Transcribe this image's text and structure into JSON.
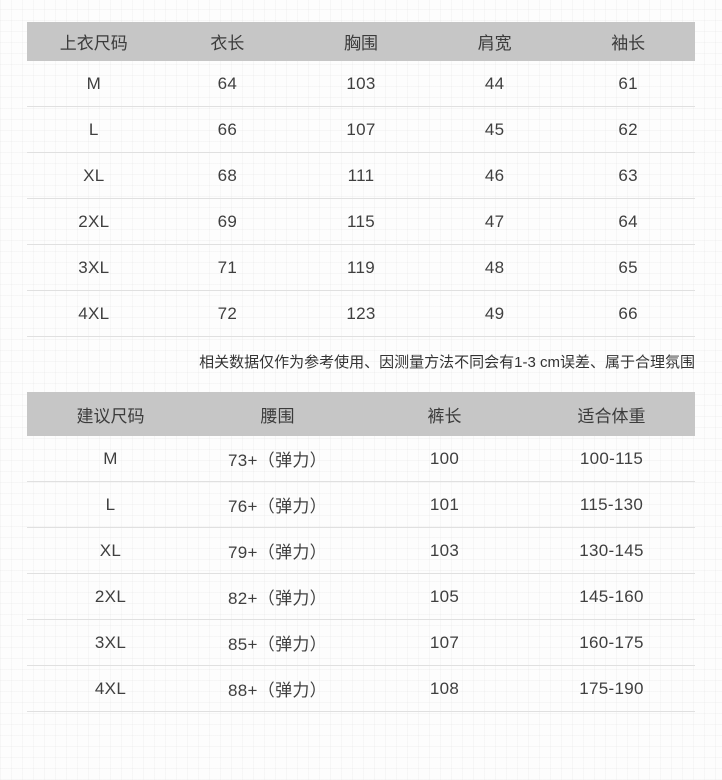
{
  "colors": {
    "header_bg": "#c6c6c6",
    "body_text": "#3f3f3f",
    "note_text": "#333333",
    "row_border": "#e0e0e0",
    "page_bg": "#fdfdfd"
  },
  "top_table": {
    "headers": [
      "上衣尺码",
      "衣长",
      "胸围",
      "肩宽",
      "袖长"
    ],
    "rows": [
      [
        "M",
        "64",
        "103",
        "44",
        "61"
      ],
      [
        "L",
        "66",
        "107",
        "45",
        "62"
      ],
      [
        "XL",
        "68",
        "111",
        "46",
        "63"
      ],
      [
        "2XL",
        "69",
        "115",
        "47",
        "64"
      ],
      [
        "3XL",
        "71",
        "119",
        "48",
        "65"
      ],
      [
        "4XL",
        "72",
        "123",
        "49",
        "66"
      ]
    ]
  },
  "note": "相关数据仅作为参考使用、因测量方法不同会有1-3 cm误差、属于合理氛围",
  "bottom_table": {
    "headers": [
      "建议尺码",
      "腰围",
      "裤长",
      "适合体重"
    ],
    "rows": [
      [
        "M",
        "73+（弹力）",
        "100",
        "100-115"
      ],
      [
        "L",
        "76+（弹力）",
        "101",
        "115-130"
      ],
      [
        "XL",
        "79+（弹力）",
        "103",
        "130-145"
      ],
      [
        "2XL",
        "82+（弹力）",
        "105",
        "145-160"
      ],
      [
        "3XL",
        "85+（弹力）",
        "107",
        "160-175"
      ],
      [
        "4XL",
        "88+（弹力）",
        "108",
        "175-190"
      ]
    ]
  },
  "chart_data": [
    {
      "type": "table",
      "columns": [
        "上衣尺码",
        "衣长",
        "胸围",
        "肩宽",
        "袖长"
      ],
      "rows": [
        [
          "M",
          64,
          103,
          44,
          61
        ],
        [
          "L",
          66,
          107,
          45,
          62
        ],
        [
          "XL",
          68,
          111,
          46,
          63
        ],
        [
          "2XL",
          69,
          115,
          47,
          64
        ],
        [
          "3XL",
          71,
          119,
          48,
          65
        ],
        [
          "4XL",
          72,
          123,
          49,
          66
        ]
      ]
    },
    {
      "type": "table",
      "columns": [
        "建议尺码",
        "腰围",
        "裤长",
        "适合体重"
      ],
      "rows": [
        [
          "M",
          "73+（弹力）",
          100,
          "100-115"
        ],
        [
          "L",
          "76+（弹力）",
          101,
          "115-130"
        ],
        [
          "XL",
          "79+（弹力）",
          103,
          "130-145"
        ],
        [
          "2XL",
          "82+（弹力）",
          105,
          "145-160"
        ],
        [
          "3XL",
          "85+（弹力）",
          107,
          "160-175"
        ],
        [
          "4XL",
          "88+（弹力）",
          108,
          "175-190"
        ]
      ]
    }
  ]
}
